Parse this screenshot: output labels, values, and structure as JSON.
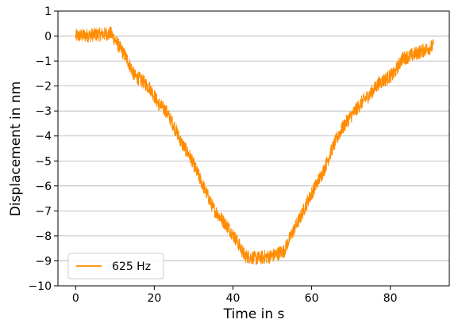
{
  "chart_data": {
    "type": "line",
    "title": "",
    "xlabel": "Time in s",
    "ylabel": "Displacement in nm",
    "xlim": [
      -4.5,
      95
    ],
    "ylim": [
      -10,
      1
    ],
    "xticks": [
      0,
      20,
      40,
      60,
      80
    ],
    "yticks": [
      1,
      0,
      -1,
      -2,
      -3,
      -4,
      -5,
      -6,
      -7,
      -8,
      -9,
      -10
    ],
    "ytick_labels": [
      "1",
      "0",
      "−1",
      "−2",
      "−3",
      "−4",
      "−5",
      "−6",
      "−7",
      "−8",
      "−9",
      "−10"
    ],
    "grid": "horizontal",
    "legend_position": "lower-left",
    "noise_amplitude": 0.28,
    "series": [
      {
        "name": "625 Hz",
        "color": "#ff8c00",
        "x": [
          0,
          9,
          11,
          13,
          15,
          17,
          19,
          21,
          23,
          25,
          27,
          29,
          31,
          33,
          35,
          37,
          39,
          41,
          43,
          46,
          50,
          53,
          55,
          57,
          59,
          61,
          63,
          65,
          67,
          69,
          71,
          73,
          75,
          77,
          79,
          81,
          83,
          85,
          88,
          91
        ],
        "y": [
          0.0,
          0.1,
          -0.4,
          -0.9,
          -1.6,
          -1.8,
          -2.1,
          -2.7,
          -3.0,
          -3.6,
          -4.3,
          -4.8,
          -5.5,
          -6.2,
          -6.9,
          -7.3,
          -7.7,
          -8.2,
          -8.8,
          -8.9,
          -8.8,
          -8.6,
          -7.9,
          -7.3,
          -6.6,
          -6.0,
          -5.4,
          -4.6,
          -3.9,
          -3.4,
          -3.0,
          -2.6,
          -2.3,
          -1.9,
          -1.7,
          -1.5,
          -0.9,
          -0.8,
          -0.6,
          -0.4
        ]
      }
    ]
  }
}
